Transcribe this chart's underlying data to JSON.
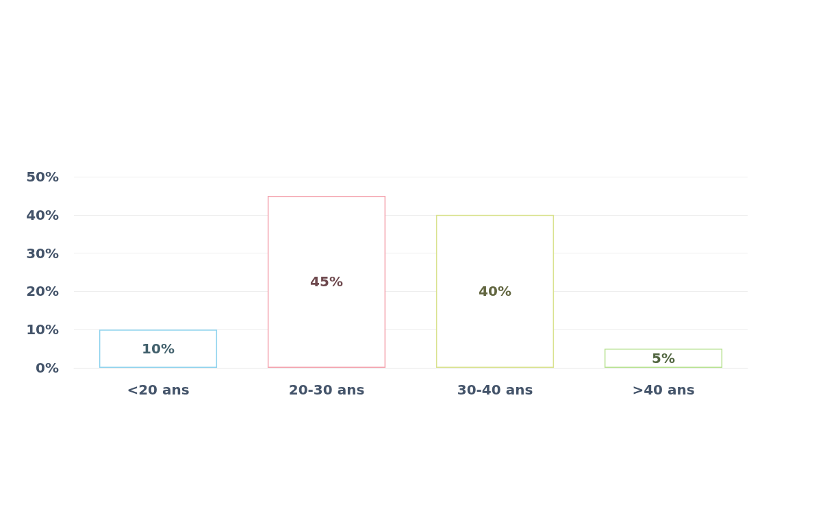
{
  "chart_data": {
    "type": "bar",
    "categories": [
      "<20 ans",
      "20-30 ans",
      "30-40 ans",
      ">40 ans"
    ],
    "values": [
      10,
      45,
      40,
      5
    ],
    "colors": [
      "#8fd3ee",
      "#f4a3ae",
      "#d9e28e",
      "#b7e291"
    ],
    "value_labels": [
      "10%",
      "45%",
      "40%",
      "5%"
    ],
    "ylim": [
      0,
      50
    ],
    "yticks": [
      {
        "value": 0,
        "label": "0%"
      },
      {
        "value": 10,
        "label": "10%"
      },
      {
        "value": 20,
        "label": "20%"
      },
      {
        "value": 30,
        "label": "30%"
      },
      {
        "value": 40,
        "label": "40%"
      },
      {
        "value": 50,
        "label": "50%"
      }
    ],
    "grid": true
  }
}
